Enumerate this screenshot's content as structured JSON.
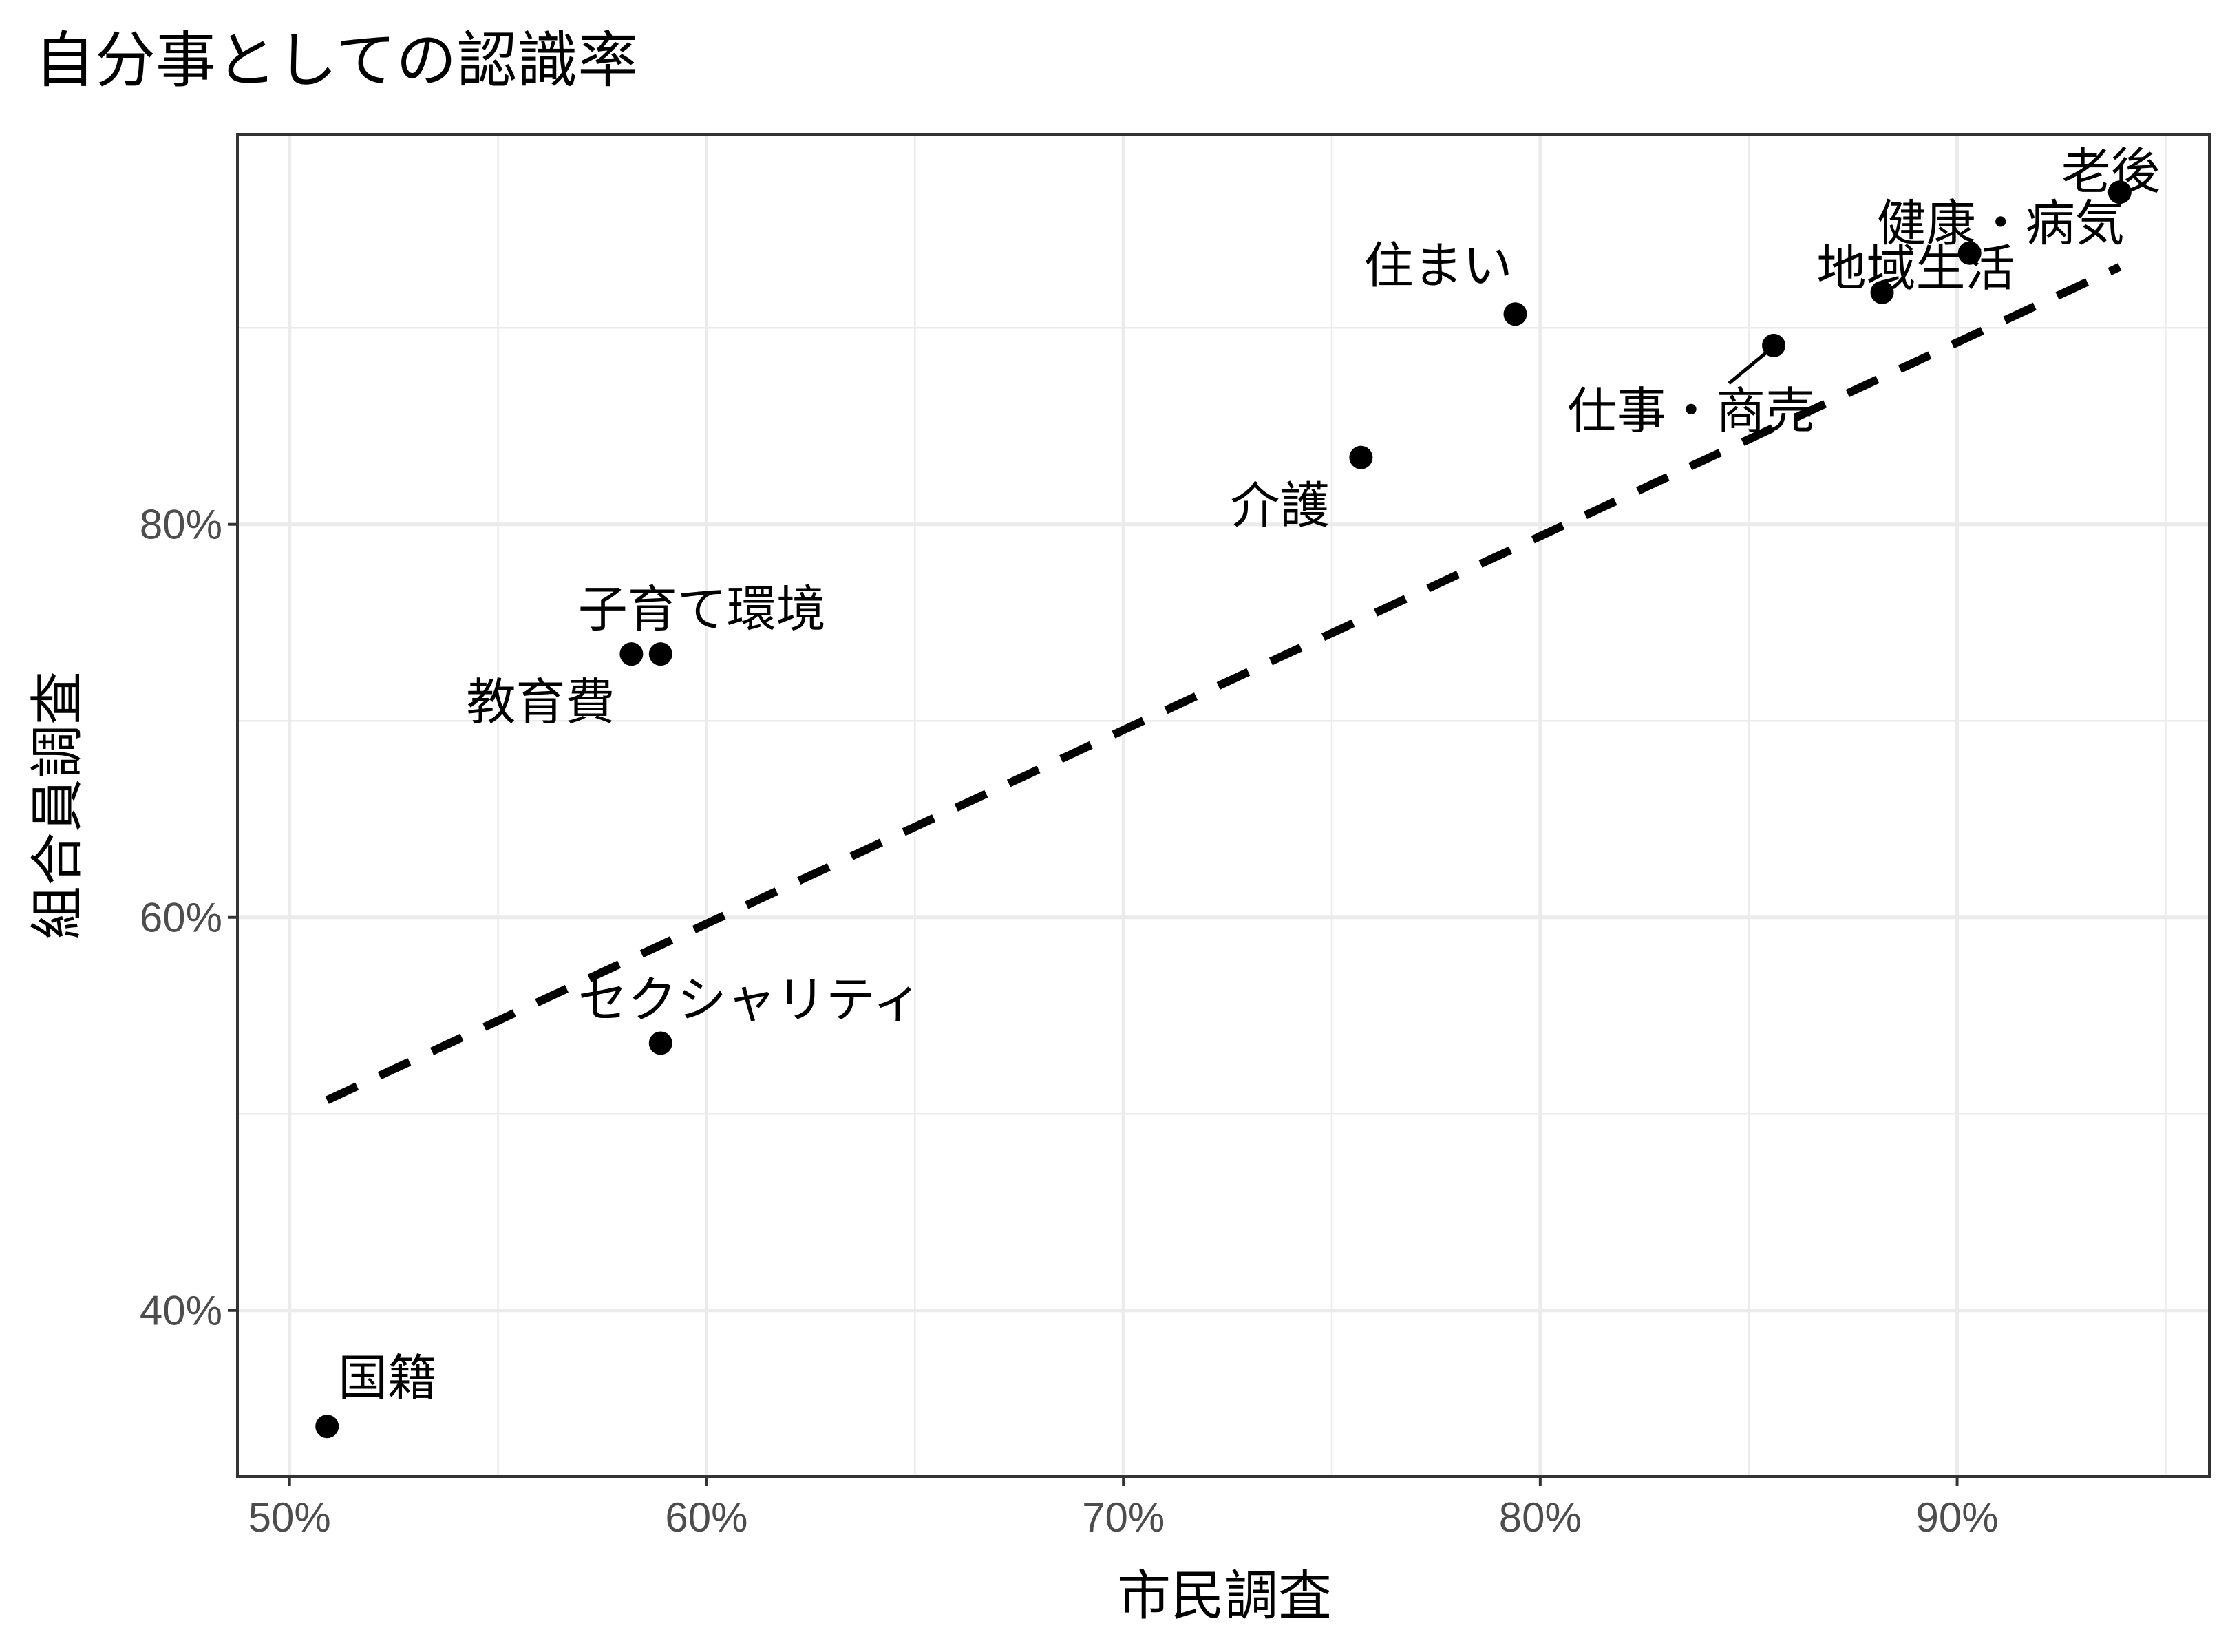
{
  "chart_data": {
    "type": "scatter",
    "title": "自分事としての認識率",
    "xlabel": "市民調査",
    "ylabel": "組合員調査",
    "xlim": [
      0.4875,
      0.9605
    ],
    "ylim": [
      0.3155,
      0.9985
    ],
    "xticks": [
      0.5,
      0.6,
      0.7,
      0.8,
      0.9
    ],
    "xtick_labels": [
      "50%",
      "60%",
      "70%",
      "80%",
      "90%"
    ],
    "yticks": [
      0.4,
      0.6,
      0.8
    ],
    "ytick_labels": [
      "40%",
      "60%",
      "80%"
    ],
    "grid": true,
    "points": [
      {
        "label": "老後",
        "x": 0.939,
        "y": 0.969
      },
      {
        "label": "健康・病気",
        "x": 0.903,
        "y": 0.938
      },
      {
        "label": "住まい",
        "x": 0.794,
        "y": 0.907
      },
      {
        "label": "地域生活",
        "x": 0.882,
        "y": 0.918
      },
      {
        "label": "仕事・商売",
        "x": 0.856,
        "y": 0.891
      },
      {
        "label": "介護",
        "x": 0.757,
        "y": 0.834
      },
      {
        "label": "子育て環境",
        "x": 0.589,
        "y": 0.734
      },
      {
        "label": "教育費",
        "x": 0.582,
        "y": 0.734
      },
      {
        "label": "セクシャリティ",
        "x": 0.589,
        "y": 0.536
      },
      {
        "label": "国籍",
        "x": 0.509,
        "y": 0.341
      }
    ],
    "trend_line": {
      "style": "dashed",
      "x": [
        0.509,
        0.939
      ],
      "y": [
        0.507,
        0.931
      ]
    }
  }
}
